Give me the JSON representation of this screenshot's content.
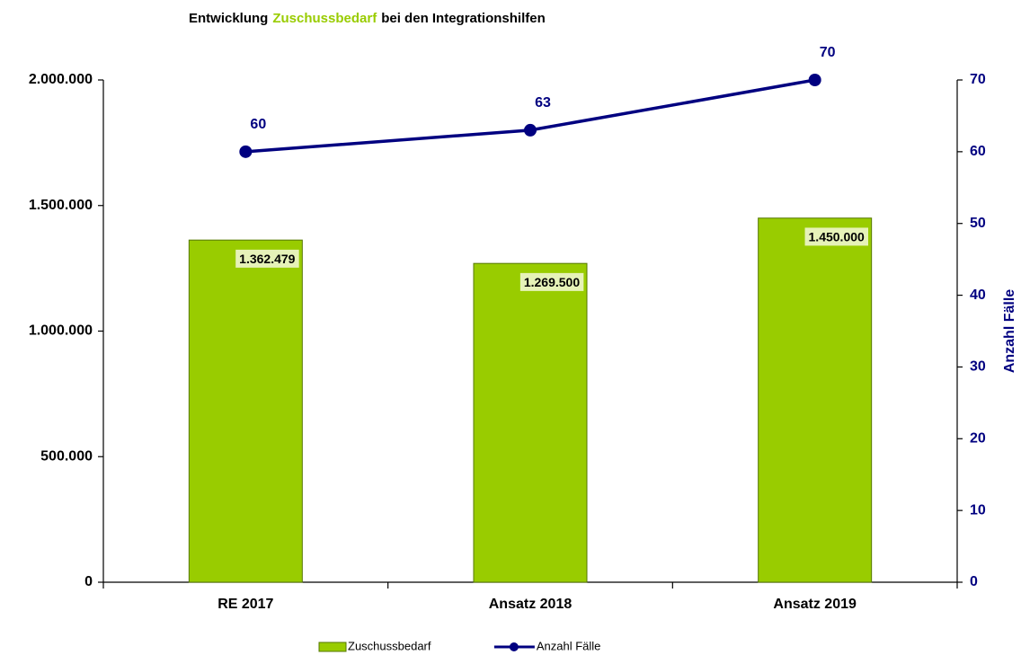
{
  "chart_data": {
    "type": "bar",
    "title": [
      "Entwicklung",
      "Zuschussbedarf",
      "bei den Integrationshilfen"
    ],
    "categories": [
      "RE 2017",
      "Ansatz 2018",
      "Ansatz 2019"
    ],
    "series": [
      {
        "name": "Zuschussbedarf",
        "type": "bar",
        "color": "#99cc00",
        "values": [
          1362479,
          1269500,
          1450000
        ],
        "value_labels": [
          "1.362.479",
          "1.269.500",
          "1.450.000"
        ]
      },
      {
        "name": "Anzahl Fälle",
        "type": "line",
        "axis": "y2",
        "color": "#000080",
        "values": [
          60,
          63,
          70
        ]
      }
    ],
    "ylim": [
      0,
      2000000
    ],
    "yticks": [
      0,
      {
        "value": 500000,
        "label": "500.000"
      },
      {
        "value": 1000000,
        "label": "1.000.000"
      },
      {
        "value": 1500000,
        "label": "1.500.000"
      },
      {
        "value": 2000000,
        "label": "2.000.000"
      }
    ],
    "y2lim": [
      0,
      70
    ],
    "y2ticks": [
      0,
      10,
      20,
      30,
      40,
      50,
      60,
      70
    ],
    "y2label": "Anzahl Fälle",
    "grid": false,
    "legend": "bottom"
  }
}
